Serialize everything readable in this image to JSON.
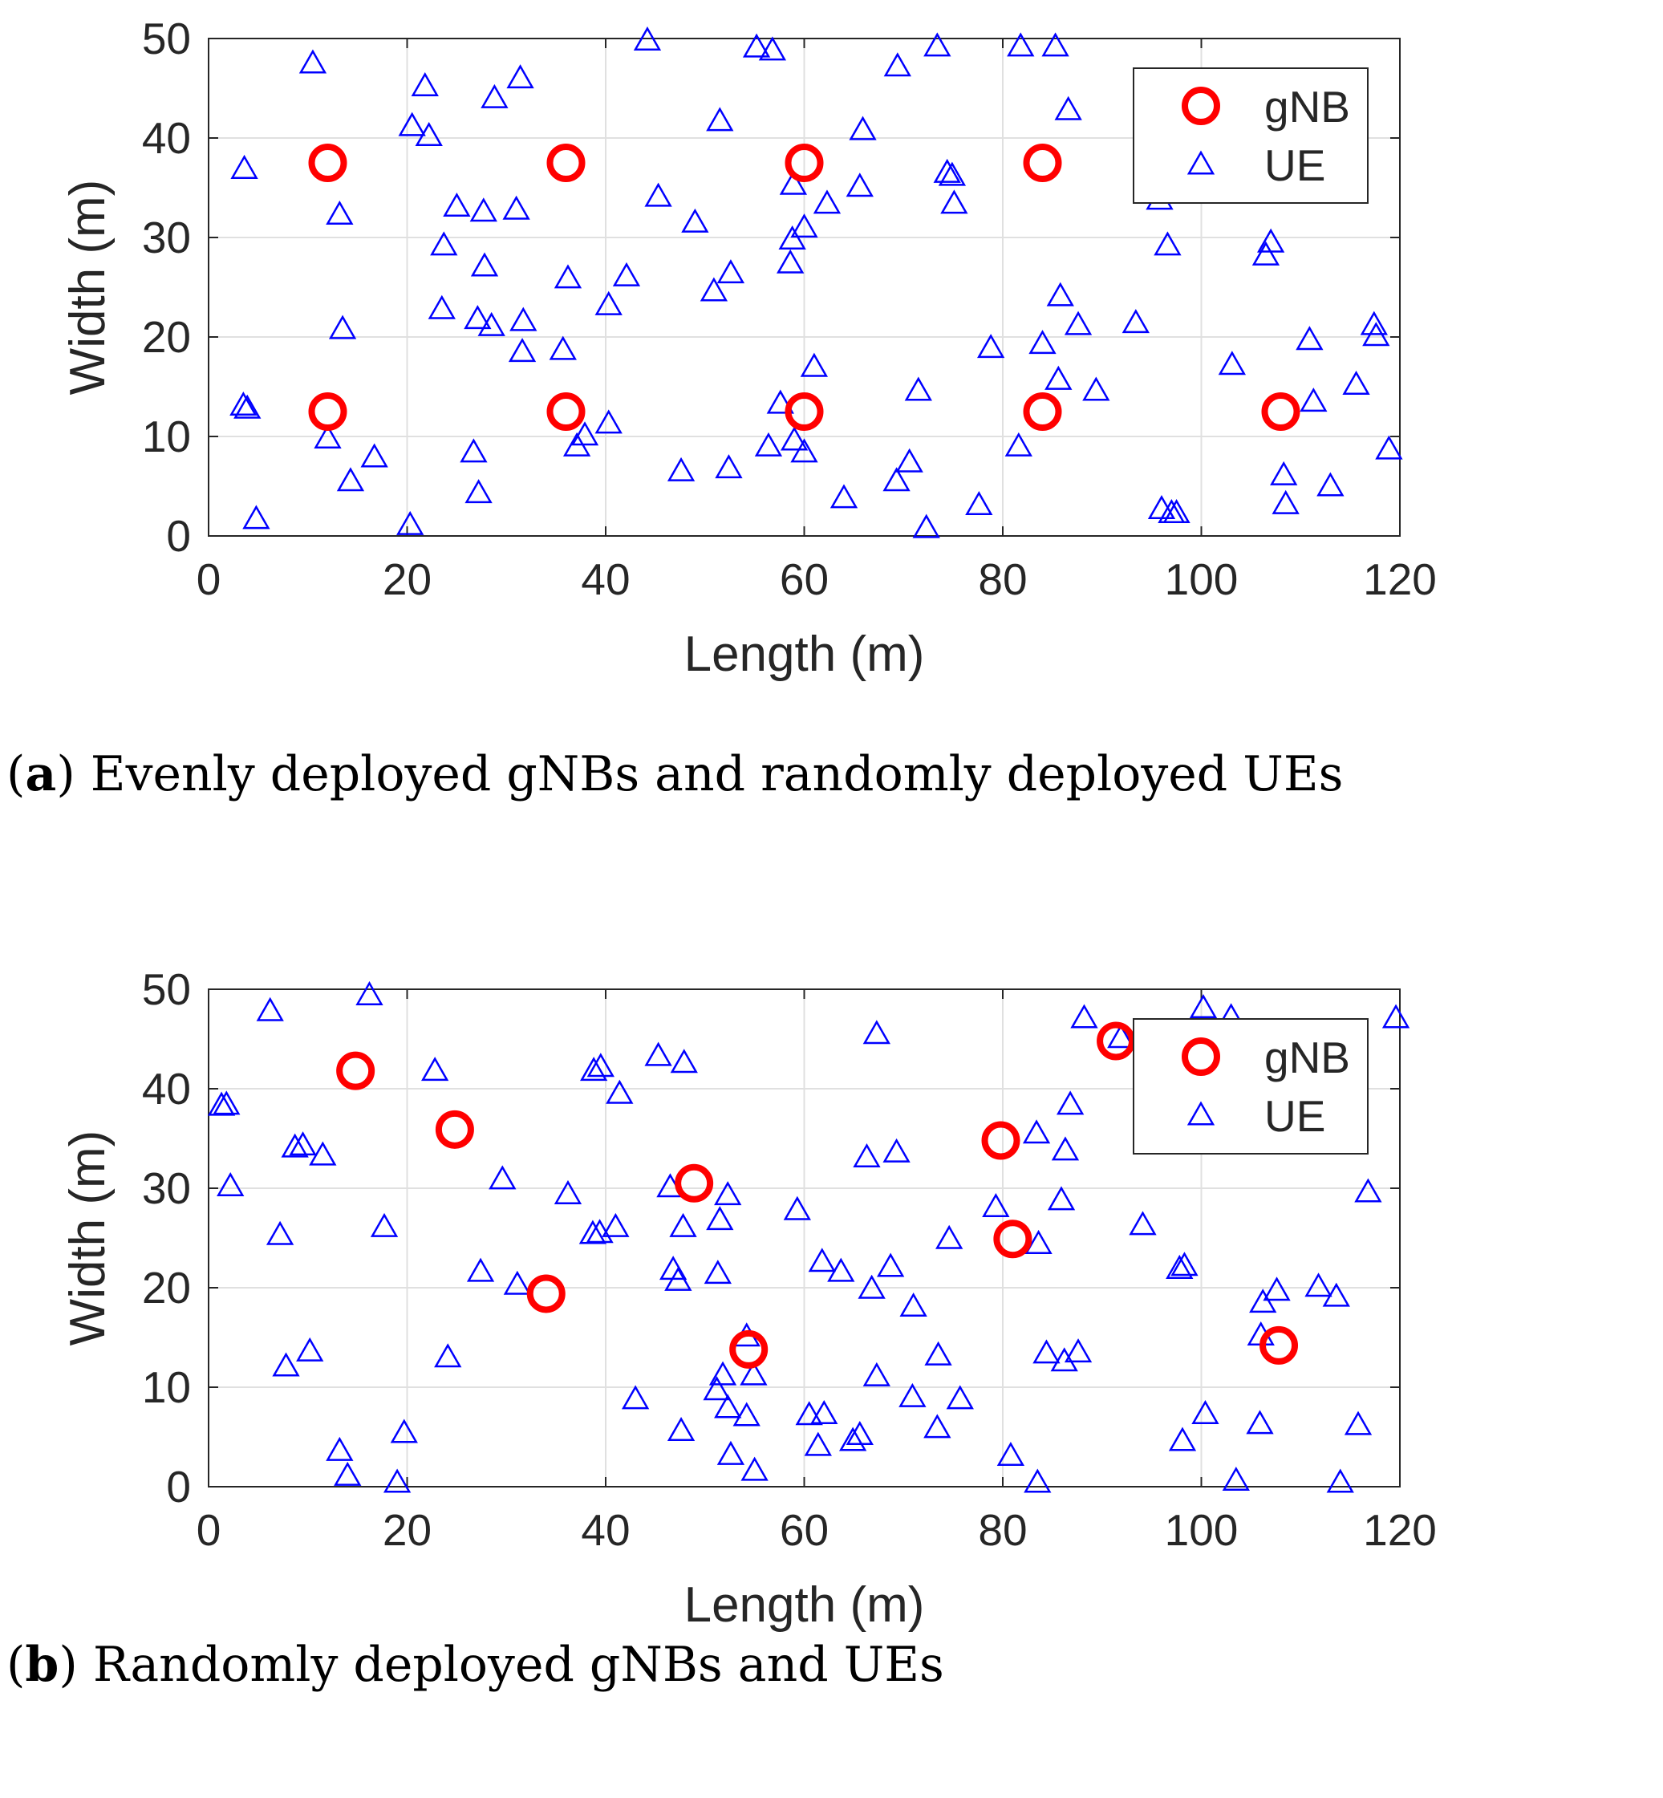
{
  "chart_data": [
    {
      "type": "scatter",
      "caption_label": "a",
      "caption_text": "Evenly deployed gNBs and randomly deployed UEs",
      "xlabel": "Length (m)",
      "ylabel": "Width (m)",
      "xlim": [
        0,
        120
      ],
      "ylim": [
        0,
        50
      ],
      "xticks": [
        "0",
        "20",
        "40",
        "60",
        "80",
        "100",
        "120"
      ],
      "yticks": [
        "0",
        "10",
        "20",
        "30",
        "40",
        "50"
      ],
      "grid": true,
      "legend_position": "top-right",
      "series": [
        {
          "name": "gNB",
          "marker": "circle",
          "color": "#ff0000",
          "points": [
            [
              12,
              37.5
            ],
            [
              36,
              37.5
            ],
            [
              60,
              37.5
            ],
            [
              84,
              37.5
            ],
            [
              12,
              12.5
            ],
            [
              36,
              12.5
            ],
            [
              60,
              12.5
            ],
            [
              84,
              12.5
            ],
            [
              108,
              12.5
            ]
          ]
        },
        {
          "name": "UE",
          "marker": "triangle",
          "color": "#0000ff",
          "points": [
            [
              10.5,
              47.5
            ],
            [
              21.8,
              45.2
            ],
            [
              28.8,
              44
            ],
            [
              31.4,
              46
            ],
            [
              44.2,
              49.8
            ],
            [
              55.2,
              49.1
            ],
            [
              56.8,
              48.8
            ],
            [
              69.4,
              47.2
            ],
            [
              73.4,
              49.2
            ],
            [
              81.8,
              49.2
            ],
            [
              85.3,
              49.2
            ],
            [
              20.5,
              41.2
            ],
            [
              22.2,
              40.2
            ],
            [
              51.5,
              41.7
            ],
            [
              65.9,
              40.8
            ],
            [
              86.6,
              42.8
            ],
            [
              3.6,
              36.9
            ],
            [
              74.4,
              36.5
            ],
            [
              74.9,
              36.2
            ],
            [
              45.3,
              34.1
            ],
            [
              58.9,
              35.3
            ],
            [
              65.6,
              35.1
            ],
            [
              62.3,
              33.4
            ],
            [
              75.1,
              33.4
            ],
            [
              95.8,
              33.8
            ],
            [
              13.2,
              32.3
            ],
            [
              25.0,
              33.1
            ],
            [
              27.7,
              32.6
            ],
            [
              31.0,
              32.8
            ],
            [
              49.0,
              31.5
            ],
            [
              60.0,
              31.0
            ],
            [
              58.8,
              29.8
            ],
            [
              23.7,
              29.2
            ],
            [
              96.6,
              29.2
            ],
            [
              107.0,
              29.5
            ],
            [
              106.5,
              28.2
            ],
            [
              27.8,
              27.1
            ],
            [
              58.6,
              27.4
            ],
            [
              36.2,
              25.9
            ],
            [
              42.1,
              26.1
            ],
            [
              52.6,
              26.4
            ],
            [
              50.9,
              24.6
            ],
            [
              40.3,
              23.2
            ],
            [
              85.8,
              24.1
            ],
            [
              23.5,
              22.8
            ],
            [
              27.1,
              21.8
            ],
            [
              28.5,
              21.1
            ],
            [
              31.7,
              21.6
            ],
            [
              13.5,
              20.8
            ],
            [
              87.6,
              21.2
            ],
            [
              93.4,
              21.4
            ],
            [
              117.4,
              21.2
            ],
            [
              117.6,
              20.1
            ],
            [
              110.9,
              19.7
            ],
            [
              31.6,
              18.5
            ],
            [
              35.7,
              18.7
            ],
            [
              78.8,
              18.9
            ],
            [
              84.0,
              19.3
            ],
            [
              61.0,
              17.0
            ],
            [
              103.1,
              17.2
            ],
            [
              85.6,
              15.7
            ],
            [
              89.4,
              14.6
            ],
            [
              71.5,
              14.6
            ],
            [
              115.6,
              15.2
            ],
            [
              3.5,
              13.1
            ],
            [
              3.9,
              12.8
            ],
            [
              57.6,
              13.3
            ],
            [
              111.3,
              13.5
            ],
            [
              12.0,
              9.8
            ],
            [
              16.7,
              7.9
            ],
            [
              26.7,
              8.4
            ],
            [
              37.1,
              9.0
            ],
            [
              37.9,
              10.1
            ],
            [
              40.3,
              11.3
            ],
            [
              56.4,
              9.0
            ],
            [
              59.0,
              9.6
            ],
            [
              60.0,
              8.4
            ],
            [
              81.6,
              9.0
            ],
            [
              118.9,
              8.7
            ],
            [
              14.3,
              5.5
            ],
            [
              47.6,
              6.5
            ],
            [
              52.4,
              6.8
            ],
            [
              70.6,
              7.4
            ],
            [
              69.3,
              5.5
            ],
            [
              108.3,
              6.1
            ],
            [
              27.2,
              4.3
            ],
            [
              64.0,
              3.8
            ],
            [
              77.6,
              3.1
            ],
            [
              113.0,
              5.0
            ],
            [
              108.5,
              3.2
            ],
            [
              4.8,
              1.7
            ],
            [
              20.3,
              1.1
            ],
            [
              72.3,
              0.8
            ],
            [
              96.0,
              2.7
            ],
            [
              97.0,
              2.3
            ],
            [
              97.5,
              2.3
            ]
          ]
        }
      ]
    },
    {
      "type": "scatter",
      "caption_label": "b",
      "caption_text": "Randomly deployed gNBs and UEs",
      "xlabel": "Length (m)",
      "ylabel": "Width (m)",
      "xlim": [
        0,
        120
      ],
      "ylim": [
        0,
        50
      ],
      "xticks": [
        "0",
        "20",
        "40",
        "60",
        "80",
        "100",
        "120"
      ],
      "yticks": [
        "0",
        "10",
        "20",
        "30",
        "40",
        "50"
      ],
      "grid": true,
      "legend_position": "top-right",
      "series": [
        {
          "name": "gNB",
          "marker": "circle",
          "color": "#ff0000",
          "points": [
            [
              14.8,
              41.8
            ],
            [
              24.8,
              35.9
            ],
            [
              48.9,
              30.5
            ],
            [
              34.0,
              19.4
            ],
            [
              54.4,
              13.8
            ],
            [
              79.8,
              34.8
            ],
            [
              81.0,
              24.9
            ],
            [
              91.4,
              44.8
            ],
            [
              107.8,
              14.2
            ]
          ]
        },
        {
          "name": "UE",
          "marker": "triangle",
          "color": "#0000ff",
          "points": [
            [
              6.2,
              47.8
            ],
            [
              16.2,
              49.4
            ],
            [
              88.2,
              47.1
            ],
            [
              100.2,
              48.1
            ],
            [
              103.0,
              47.2
            ],
            [
              119.6,
              47.1
            ],
            [
              67.3,
              45.5
            ],
            [
              91.9,
              45.1
            ],
            [
              22.8,
              41.8
            ],
            [
              38.8,
              41.8
            ],
            [
              39.5,
              42.2
            ],
            [
              45.3,
              43.3
            ],
            [
              47.9,
              42.6
            ],
            [
              41.4,
              39.5
            ],
            [
              1.3,
              38.3
            ],
            [
              1.8,
              38.4
            ],
            [
              86.8,
              38.4
            ],
            [
              8.7,
              34.1
            ],
            [
              9.5,
              34.3
            ],
            [
              11.5,
              33.3
            ],
            [
              66.3,
              33.1
            ],
            [
              69.3,
              33.6
            ],
            [
              83.4,
              35.5
            ],
            [
              86.3,
              33.8
            ],
            [
              2.2,
              30.2
            ],
            [
              29.6,
              30.9
            ],
            [
              36.2,
              29.4
            ],
            [
              46.5,
              30.1
            ],
            [
              52.3,
              29.3
            ],
            [
              116.8,
              29.6
            ],
            [
              59.3,
              27.8
            ],
            [
              79.3,
              28.1
            ],
            [
              85.9,
              28.8
            ],
            [
              7.2,
              25.3
            ],
            [
              17.7,
              26.1
            ],
            [
              38.7,
              25.4
            ],
            [
              39.4,
              25.5
            ],
            [
              41.0,
              26.1
            ],
            [
              47.8,
              26.1
            ],
            [
              51.5,
              26.8
            ],
            [
              74.6,
              24.9
            ],
            [
              83.6,
              24.4
            ],
            [
              94.1,
              26.3
            ],
            [
              27.4,
              21.6
            ],
            [
              31.1,
              20.3
            ],
            [
              46.8,
              21.8
            ],
            [
              47.3,
              20.7
            ],
            [
              51.3,
              21.4
            ],
            [
              61.8,
              22.6
            ],
            [
              63.7,
              21.6
            ],
            [
              66.8,
              19.9
            ],
            [
              68.7,
              22.1
            ],
            [
              71.0,
              18.1
            ],
            [
              97.8,
              21.9
            ],
            [
              98.3,
              22.2
            ],
            [
              106.2,
              18.5
            ],
            [
              107.6,
              19.7
            ],
            [
              111.8,
              20.1
            ],
            [
              113.6,
              19.1
            ],
            [
              106.0,
              15.2
            ],
            [
              7.8,
              12.1
            ],
            [
              10.2,
              13.6
            ],
            [
              24.1,
              13.0
            ],
            [
              51.2,
              9.7
            ],
            [
              51.8,
              11.2
            ],
            [
              54.2,
              15.1
            ],
            [
              54.9,
              11.2
            ],
            [
              67.3,
              11.1
            ],
            [
              73.5,
              13.2
            ],
            [
              84.4,
              13.4
            ],
            [
              86.2,
              12.6
            ],
            [
              87.6,
              13.5
            ],
            [
              13.2,
              3.6
            ],
            [
              14.0,
              1.1
            ],
            [
              19.0,
              0.4
            ],
            [
              19.7,
              5.4
            ],
            [
              43.0,
              8.8
            ],
            [
              47.6,
              5.6
            ],
            [
              52.3,
              7.9
            ],
            [
              52.6,
              3.2
            ],
            [
              54.2,
              7.1
            ],
            [
              55.0,
              1.6
            ],
            [
              60.5,
              7.2
            ],
            [
              61.4,
              4.1
            ],
            [
              62.0,
              7.3
            ],
            [
              64.9,
              4.6
            ],
            [
              65.6,
              5.2
            ],
            [
              70.9,
              9.0
            ],
            [
              73.4,
              5.9
            ],
            [
              75.7,
              8.8
            ],
            [
              80.8,
              3.1
            ],
            [
              83.5,
              0.4
            ],
            [
              98.1,
              4.6
            ],
            [
              100.4,
              7.3
            ],
            [
              103.5,
              0.6
            ],
            [
              105.9,
              6.3
            ],
            [
              114.0,
              0.4
            ],
            [
              115.8,
              6.2
            ]
          ]
        }
      ]
    }
  ]
}
